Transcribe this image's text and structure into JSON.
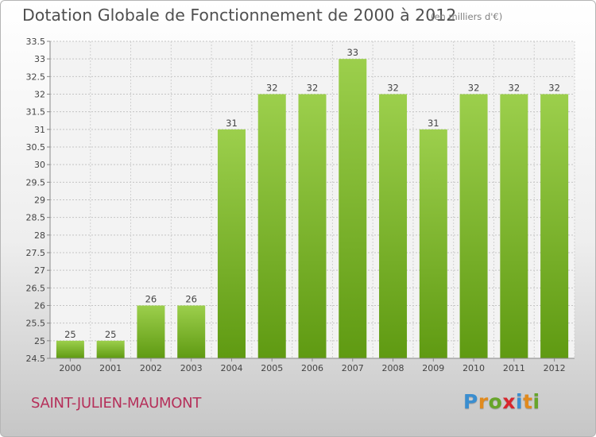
{
  "header": {
    "title": "Dotation Globale de Fonctionnement de 2000 à 2012",
    "unit": "(en milliers d'€)"
  },
  "footer": {
    "commune": "SAINT-JULIEN-MAUMONT",
    "logo": {
      "letters": [
        "P",
        "r",
        "o",
        "x",
        "i",
        "t",
        "i"
      ],
      "colors": [
        "#3a8ed0",
        "#e08a1e",
        "#67a52a",
        "#d8262d",
        "#3a8ed0",
        "#e08a1e",
        "#67a52a"
      ]
    }
  },
  "chart_data": {
    "type": "bar",
    "categories": [
      "2000",
      "2001",
      "2002",
      "2003",
      "2004",
      "2005",
      "2006",
      "2007",
      "2008",
      "2009",
      "2010",
      "2011",
      "2012"
    ],
    "values": [
      25,
      25,
      26,
      26,
      31,
      32,
      32,
      33,
      32,
      31,
      32,
      32,
      32
    ],
    "data_labels": [
      "25",
      "25",
      "26",
      "26",
      "31",
      "32",
      "32",
      "33",
      "32",
      "31",
      "32",
      "32",
      "32"
    ],
    "ylim": [
      24.5,
      33.5
    ],
    "yticks": [
      24.5,
      25,
      25.5,
      26,
      26.5,
      27,
      27.5,
      28,
      28.5,
      29,
      29.5,
      30,
      30.5,
      31,
      31.5,
      32,
      32.5,
      33,
      33.5
    ],
    "ytick_labels": [
      "24.5",
      "25",
      "25.5",
      "26",
      "26.5",
      "27",
      "27.5",
      "28",
      "28.5",
      "29",
      "29.5",
      "30",
      "30.5",
      "31",
      "31.5",
      "32",
      "32.5",
      "33",
      "33.5"
    ],
    "grid": true,
    "bar_color_top": "#9ccf4c",
    "bar_color_bottom": "#5f9a12"
  }
}
